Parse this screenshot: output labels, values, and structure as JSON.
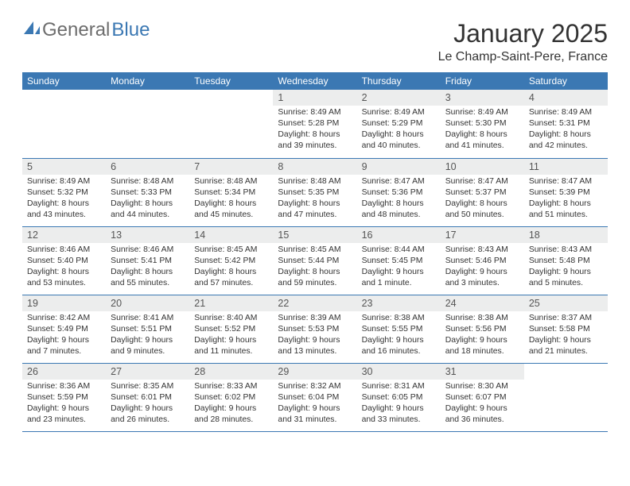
{
  "logo": {
    "general": "General",
    "blue": "Blue"
  },
  "title": "January 2025",
  "location": "Le Champ-Saint-Pere, France",
  "dayNames": [
    "Sunday",
    "Monday",
    "Tuesday",
    "Wednesday",
    "Thursday",
    "Friday",
    "Saturday"
  ],
  "colors": {
    "headerBar": "#3b78b3",
    "dayNumBg": "#eceded",
    "text": "#333333",
    "logoGray": "#6d6d6d",
    "logoBlue": "#3b78b3",
    "rowBorder": "#3b78b3"
  },
  "weeks": [
    [
      {
        "n": "",
        "sunrise": "",
        "sunset": "",
        "daylight": ""
      },
      {
        "n": "",
        "sunrise": "",
        "sunset": "",
        "daylight": ""
      },
      {
        "n": "",
        "sunrise": "",
        "sunset": "",
        "daylight": ""
      },
      {
        "n": "1",
        "sunrise": "Sunrise: 8:49 AM",
        "sunset": "Sunset: 5:28 PM",
        "daylight": "Daylight: 8 hours and 39 minutes."
      },
      {
        "n": "2",
        "sunrise": "Sunrise: 8:49 AM",
        "sunset": "Sunset: 5:29 PM",
        "daylight": "Daylight: 8 hours and 40 minutes."
      },
      {
        "n": "3",
        "sunrise": "Sunrise: 8:49 AM",
        "sunset": "Sunset: 5:30 PM",
        "daylight": "Daylight: 8 hours and 41 minutes."
      },
      {
        "n": "4",
        "sunrise": "Sunrise: 8:49 AM",
        "sunset": "Sunset: 5:31 PM",
        "daylight": "Daylight: 8 hours and 42 minutes."
      }
    ],
    [
      {
        "n": "5",
        "sunrise": "Sunrise: 8:49 AM",
        "sunset": "Sunset: 5:32 PM",
        "daylight": "Daylight: 8 hours and 43 minutes."
      },
      {
        "n": "6",
        "sunrise": "Sunrise: 8:48 AM",
        "sunset": "Sunset: 5:33 PM",
        "daylight": "Daylight: 8 hours and 44 minutes."
      },
      {
        "n": "7",
        "sunrise": "Sunrise: 8:48 AM",
        "sunset": "Sunset: 5:34 PM",
        "daylight": "Daylight: 8 hours and 45 minutes."
      },
      {
        "n": "8",
        "sunrise": "Sunrise: 8:48 AM",
        "sunset": "Sunset: 5:35 PM",
        "daylight": "Daylight: 8 hours and 47 minutes."
      },
      {
        "n": "9",
        "sunrise": "Sunrise: 8:47 AM",
        "sunset": "Sunset: 5:36 PM",
        "daylight": "Daylight: 8 hours and 48 minutes."
      },
      {
        "n": "10",
        "sunrise": "Sunrise: 8:47 AM",
        "sunset": "Sunset: 5:37 PM",
        "daylight": "Daylight: 8 hours and 50 minutes."
      },
      {
        "n": "11",
        "sunrise": "Sunrise: 8:47 AM",
        "sunset": "Sunset: 5:39 PM",
        "daylight": "Daylight: 8 hours and 51 minutes."
      }
    ],
    [
      {
        "n": "12",
        "sunrise": "Sunrise: 8:46 AM",
        "sunset": "Sunset: 5:40 PM",
        "daylight": "Daylight: 8 hours and 53 minutes."
      },
      {
        "n": "13",
        "sunrise": "Sunrise: 8:46 AM",
        "sunset": "Sunset: 5:41 PM",
        "daylight": "Daylight: 8 hours and 55 minutes."
      },
      {
        "n": "14",
        "sunrise": "Sunrise: 8:45 AM",
        "sunset": "Sunset: 5:42 PM",
        "daylight": "Daylight: 8 hours and 57 minutes."
      },
      {
        "n": "15",
        "sunrise": "Sunrise: 8:45 AM",
        "sunset": "Sunset: 5:44 PM",
        "daylight": "Daylight: 8 hours and 59 minutes."
      },
      {
        "n": "16",
        "sunrise": "Sunrise: 8:44 AM",
        "sunset": "Sunset: 5:45 PM",
        "daylight": "Daylight: 9 hours and 1 minute."
      },
      {
        "n": "17",
        "sunrise": "Sunrise: 8:43 AM",
        "sunset": "Sunset: 5:46 PM",
        "daylight": "Daylight: 9 hours and 3 minutes."
      },
      {
        "n": "18",
        "sunrise": "Sunrise: 8:43 AM",
        "sunset": "Sunset: 5:48 PM",
        "daylight": "Daylight: 9 hours and 5 minutes."
      }
    ],
    [
      {
        "n": "19",
        "sunrise": "Sunrise: 8:42 AM",
        "sunset": "Sunset: 5:49 PM",
        "daylight": "Daylight: 9 hours and 7 minutes."
      },
      {
        "n": "20",
        "sunrise": "Sunrise: 8:41 AM",
        "sunset": "Sunset: 5:51 PM",
        "daylight": "Daylight: 9 hours and 9 minutes."
      },
      {
        "n": "21",
        "sunrise": "Sunrise: 8:40 AM",
        "sunset": "Sunset: 5:52 PM",
        "daylight": "Daylight: 9 hours and 11 minutes."
      },
      {
        "n": "22",
        "sunrise": "Sunrise: 8:39 AM",
        "sunset": "Sunset: 5:53 PM",
        "daylight": "Daylight: 9 hours and 13 minutes."
      },
      {
        "n": "23",
        "sunrise": "Sunrise: 8:38 AM",
        "sunset": "Sunset: 5:55 PM",
        "daylight": "Daylight: 9 hours and 16 minutes."
      },
      {
        "n": "24",
        "sunrise": "Sunrise: 8:38 AM",
        "sunset": "Sunset: 5:56 PM",
        "daylight": "Daylight: 9 hours and 18 minutes."
      },
      {
        "n": "25",
        "sunrise": "Sunrise: 8:37 AM",
        "sunset": "Sunset: 5:58 PM",
        "daylight": "Daylight: 9 hours and 21 minutes."
      }
    ],
    [
      {
        "n": "26",
        "sunrise": "Sunrise: 8:36 AM",
        "sunset": "Sunset: 5:59 PM",
        "daylight": "Daylight: 9 hours and 23 minutes."
      },
      {
        "n": "27",
        "sunrise": "Sunrise: 8:35 AM",
        "sunset": "Sunset: 6:01 PM",
        "daylight": "Daylight: 9 hours and 26 minutes."
      },
      {
        "n": "28",
        "sunrise": "Sunrise: 8:33 AM",
        "sunset": "Sunset: 6:02 PM",
        "daylight": "Daylight: 9 hours and 28 minutes."
      },
      {
        "n": "29",
        "sunrise": "Sunrise: 8:32 AM",
        "sunset": "Sunset: 6:04 PM",
        "daylight": "Daylight: 9 hours and 31 minutes."
      },
      {
        "n": "30",
        "sunrise": "Sunrise: 8:31 AM",
        "sunset": "Sunset: 6:05 PM",
        "daylight": "Daylight: 9 hours and 33 minutes."
      },
      {
        "n": "31",
        "sunrise": "Sunrise: 8:30 AM",
        "sunset": "Sunset: 6:07 PM",
        "daylight": "Daylight: 9 hours and 36 minutes."
      },
      {
        "n": "",
        "sunrise": "",
        "sunset": "",
        "daylight": ""
      }
    ]
  ]
}
